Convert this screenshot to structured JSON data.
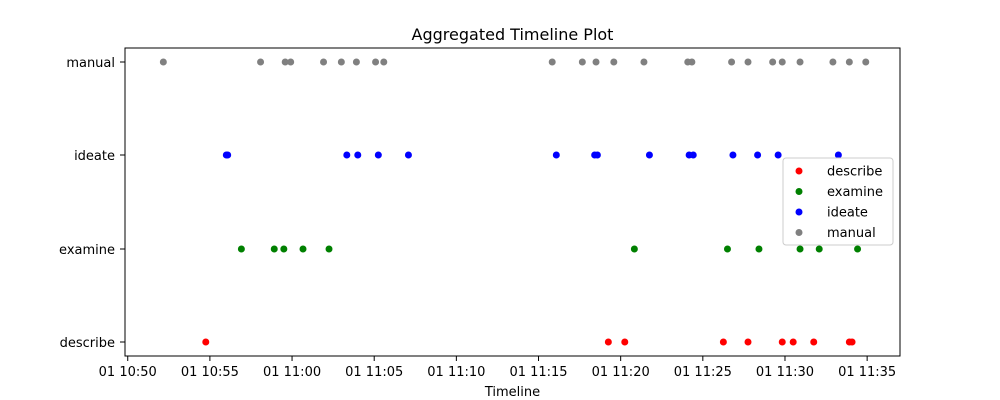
{
  "chart_data": {
    "type": "scatter",
    "title": "Aggregated Timeline Plot",
    "xlabel": "Timeline",
    "ylabel": "",
    "categories": [
      "describe",
      "examine",
      "ideate",
      "manual"
    ],
    "x_axis": {
      "type": "time",
      "tick_labels": [
        "01 10:50",
        "01 10:55",
        "01 11:00",
        "01 11:05",
        "01 11:10",
        "01 11:15",
        "01 11:20",
        "01 11:25",
        "01 11:30",
        "01 11:35"
      ],
      "tick_values": [
        "10:50",
        "10:55",
        "11:00",
        "11:05",
        "11:10",
        "11:15",
        "11:20",
        "11:25",
        "11:30",
        "11:35"
      ],
      "range": [
        "10:49:50",
        "11:37:00"
      ]
    },
    "grid": false,
    "legend": {
      "position": "center-right",
      "entries": [
        "describe",
        "examine",
        "ideate",
        "manual"
      ]
    },
    "series": [
      {
        "name": "describe",
        "color": "#ff0000",
        "category": "describe",
        "x": [
          "10:54:45",
          "11:19:15",
          "11:20:15",
          "11:26:15",
          "11:27:45",
          "11:29:50",
          "11:30:30",
          "11:31:45",
          "11:33:55",
          "11:34:05"
        ]
      },
      {
        "name": "examine",
        "color": "#008000",
        "category": "examine",
        "x": [
          "10:56:55",
          "10:58:55",
          "10:59:30",
          "11:00:40",
          "11:02:15",
          "11:20:50",
          "11:26:30",
          "11:28:25",
          "11:30:55",
          "11:32:05",
          "11:34:25"
        ]
      },
      {
        "name": "ideate",
        "color": "#0000ff",
        "category": "ideate",
        "x": [
          "10:56:00",
          "10:56:05",
          "11:03:20",
          "11:04:00",
          "11:05:15",
          "11:07:05",
          "11:16:05",
          "11:18:25",
          "11:18:35",
          "11:21:45",
          "11:24:10",
          "11:24:25",
          "11:26:50",
          "11:28:20",
          "11:29:35",
          "11:33:15"
        ]
      },
      {
        "name": "manual",
        "color": "#808080",
        "category": "manual",
        "x": [
          "10:52:10",
          "10:58:05",
          "10:59:35",
          "10:59:55",
          "11:01:55",
          "11:03:00",
          "11:03:55",
          "11:05:05",
          "11:05:35",
          "11:15:50",
          "11:17:40",
          "11:18:30",
          "11:19:35",
          "11:21:25",
          "11:24:05",
          "11:24:20",
          "11:26:45",
          "11:27:45",
          "11:29:15",
          "11:29:50",
          "11:30:55",
          "11:32:55",
          "11:33:55",
          "11:34:55"
        ]
      }
    ]
  }
}
